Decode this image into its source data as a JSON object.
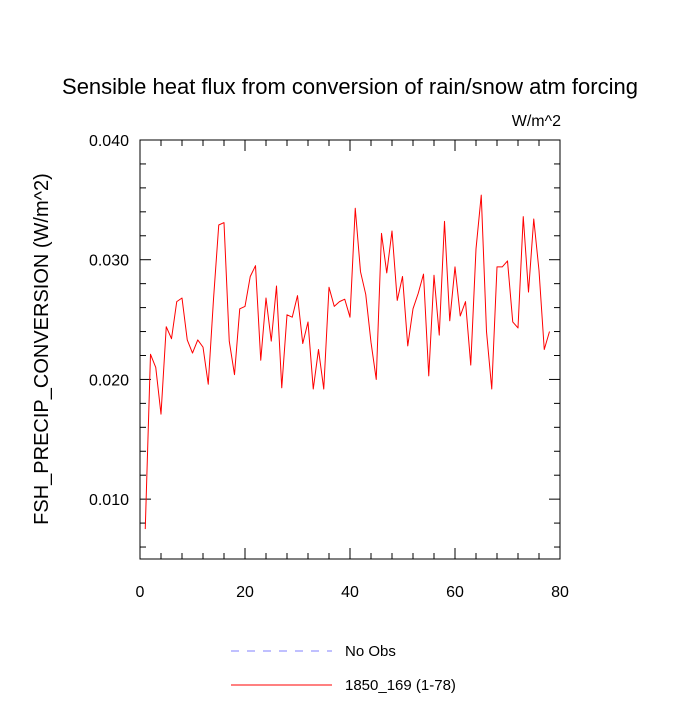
{
  "chart_data": {
    "type": "line",
    "title": "Sensible heat flux from conversion of rain/snow atm forcing",
    "units": "W/m^2",
    "xlabel": "",
    "ylabel": "FSH_PRECIP_CONVERSION  (W/m^2)",
    "xlim": [
      0,
      80
    ],
    "ylim": [
      0.005,
      0.04
    ],
    "xticks": [
      0,
      20,
      40,
      60,
      80
    ],
    "xtick_labels": [
      "0",
      "20",
      "40",
      "60",
      "80"
    ],
    "yticks": [
      0.01,
      0.02,
      0.03,
      0.04
    ],
    "ytick_labels": [
      "0.010",
      "0.020",
      "0.030",
      "0.040"
    ],
    "grid": false,
    "legend_position": "bottom-center",
    "series": [
      {
        "name": "No Obs",
        "color": "#8080ff",
        "dash": "dashed",
        "x": [],
        "values": []
      },
      {
        "name": "1850_169 (1-78)",
        "color": "#ff0000",
        "dash": "solid",
        "x": [
          1,
          2,
          3,
          4,
          5,
          6,
          7,
          8,
          9,
          10,
          11,
          12,
          13,
          14,
          15,
          16,
          17,
          18,
          19,
          20,
          21,
          22,
          23,
          24,
          25,
          26,
          27,
          28,
          29,
          30,
          31,
          32,
          33,
          34,
          35,
          36,
          37,
          38,
          39,
          40,
          41,
          42,
          43,
          44,
          45,
          46,
          47,
          48,
          49,
          50,
          51,
          52,
          53,
          54,
          55,
          56,
          57,
          58,
          59,
          60,
          61,
          62,
          63,
          64,
          65,
          66,
          67,
          68,
          69,
          70,
          71,
          72,
          73,
          74,
          75,
          76,
          77,
          78
        ],
        "values": [
          0.0075,
          0.0221,
          0.021,
          0.0171,
          0.0244,
          0.0234,
          0.0265,
          0.0268,
          0.0233,
          0.0222,
          0.0233,
          0.0227,
          0.0196,
          0.0267,
          0.0329,
          0.0331,
          0.0232,
          0.0204,
          0.0259,
          0.0261,
          0.0286,
          0.0295,
          0.0216,
          0.0268,
          0.0232,
          0.0278,
          0.0193,
          0.0254,
          0.0252,
          0.027,
          0.023,
          0.0248,
          0.0192,
          0.0225,
          0.0192,
          0.0277,
          0.0261,
          0.0265,
          0.0267,
          0.0252,
          0.0343,
          0.029,
          0.0271,
          0.0231,
          0.02,
          0.0322,
          0.0289,
          0.0324,
          0.0266,
          0.0286,
          0.0228,
          0.0259,
          0.0272,
          0.0288,
          0.0203,
          0.0287,
          0.0237,
          0.0332,
          0.0249,
          0.0294,
          0.0253,
          0.0265,
          0.0212,
          0.0309,
          0.0354,
          0.024,
          0.0192,
          0.0294,
          0.0294,
          0.0299,
          0.0248,
          0.0243,
          0.0336,
          0.0273,
          0.0334,
          0.0291,
          0.0225,
          0.024
        ]
      }
    ]
  }
}
